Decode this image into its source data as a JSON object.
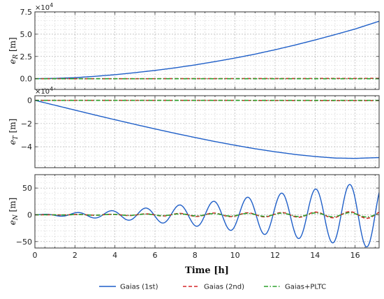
{
  "chart_data": [
    {
      "type": "line",
      "panel": "top",
      "ylabel_base": "e",
      "ylabel_sub": "R",
      "ylabel_unit": " [m]",
      "multiplier_base": "×10",
      "multiplier_exp": "4",
      "xlim": [
        0,
        17.2
      ],
      "ylim": [
        -1.2,
        7.5
      ],
      "yticks": [
        0,
        2.5,
        5,
        7.5
      ],
      "ytick_labels": [
        "0.0",
        "2.5",
        "5.0",
        "7.5"
      ],
      "grid": true,
      "series": [
        {
          "name": "Gaias (1st)",
          "x": [
            0,
            1,
            2,
            3,
            4,
            5,
            6,
            7,
            8,
            9,
            10,
            11,
            12,
            13,
            14,
            15,
            16,
            17.2
          ],
          "y": [
            0,
            0.04,
            0.12,
            0.27,
            0.45,
            0.68,
            0.93,
            1.22,
            1.55,
            1.92,
            2.32,
            2.76,
            3.25,
            3.78,
            4.35,
            4.95,
            5.58,
            6.45
          ]
        },
        {
          "name": "Gaias (2nd)",
          "x": [
            0,
            4,
            8,
            12,
            16,
            17.2
          ],
          "y": [
            0,
            0,
            0.01,
            0.02,
            0.03,
            0.04
          ]
        },
        {
          "name": "Gaias+PLTC",
          "x": [
            0,
            4,
            8,
            12,
            16,
            17.2
          ],
          "y": [
            0,
            0,
            0,
            0,
            0,
            0
          ]
        }
      ]
    },
    {
      "type": "line",
      "panel": "middle",
      "ylabel_base": "e",
      "ylabel_sub": "T",
      "ylabel_unit": " [m]",
      "multiplier_base": "×10",
      "multiplier_exp": "4",
      "xlim": [
        0,
        17.2
      ],
      "ylim": [
        -5.8,
        0.4
      ],
      "yticks": [
        0,
        -2,
        -4
      ],
      "ytick_labels": [
        "0",
        "−2",
        "−4"
      ],
      "grid": true,
      "series": [
        {
          "name": "Gaias (1st)",
          "x": [
            0,
            1,
            2,
            3,
            4,
            5,
            6,
            7,
            8,
            9,
            10,
            11,
            12,
            13,
            14,
            15,
            16,
            17.2
          ],
          "y": [
            0,
            -0.42,
            -0.84,
            -1.26,
            -1.67,
            -2.07,
            -2.46,
            -2.84,
            -3.2,
            -3.55,
            -3.87,
            -4.17,
            -4.43,
            -4.66,
            -4.84,
            -4.97,
            -5.0,
            -4.93
          ]
        },
        {
          "name": "Gaias (2nd)",
          "x": [
            0,
            4,
            8,
            12,
            16,
            17.2
          ],
          "y": [
            0,
            0,
            0,
            -0.01,
            -0.02,
            -0.02
          ]
        },
        {
          "name": "Gaias+PLTC",
          "x": [
            0,
            4,
            8,
            12,
            16,
            17.2
          ],
          "y": [
            0,
            0,
            0,
            0,
            0,
            0
          ]
        }
      ]
    },
    {
      "type": "line",
      "panel": "bottom",
      "ylabel_base": "e",
      "ylabel_sub": "N",
      "ylabel_unit": " [m]",
      "xlabel": "Time [h]",
      "xlim": [
        0,
        17.2
      ],
      "ylim": [
        -62,
        75
      ],
      "xticks": [
        0,
        2,
        4,
        6,
        8,
        10,
        12,
        14,
        16
      ],
      "xtick_labels": [
        "0",
        "2",
        "4",
        "6",
        "8",
        "10",
        "12",
        "14",
        "16"
      ],
      "yticks": [
        -50,
        0,
        50
      ],
      "ytick_labels": [
        "−50",
        "0",
        "50"
      ],
      "grid": true,
      "oscillation_period_h": 1.7,
      "series": [
        {
          "name": "Gaias (1st)",
          "envelope_x": [
            0,
            2,
            4,
            6,
            8,
            10,
            12,
            14,
            16,
            17.2
          ],
          "envelope_y": [
            0,
            4,
            8,
            14,
            21,
            30,
            39,
            48,
            58,
            62
          ]
        },
        {
          "name": "Gaias (2nd)",
          "envelope_x": [
            0,
            4,
            8,
            12,
            16,
            17.2
          ],
          "envelope_y": [
            0,
            1,
            3,
            4,
            6,
            7
          ]
        },
        {
          "name": "Gaias+PLTC",
          "envelope_x": [
            0,
            4,
            8,
            12,
            16,
            17.2
          ],
          "envelope_y": [
            0,
            1,
            2,
            3,
            4,
            4
          ]
        }
      ]
    }
  ],
  "legend": {
    "placement": "bottom",
    "items": [
      {
        "label": "Gaias (1st)",
        "color": "#1f5fc8",
        "dash": "solid"
      },
      {
        "label": "Gaias (2nd)",
        "color": "#d62728",
        "dash": "dashed"
      },
      {
        "label": "Gaias+PLTC",
        "color": "#2ca02c",
        "dash": "dashdot"
      }
    ]
  }
}
